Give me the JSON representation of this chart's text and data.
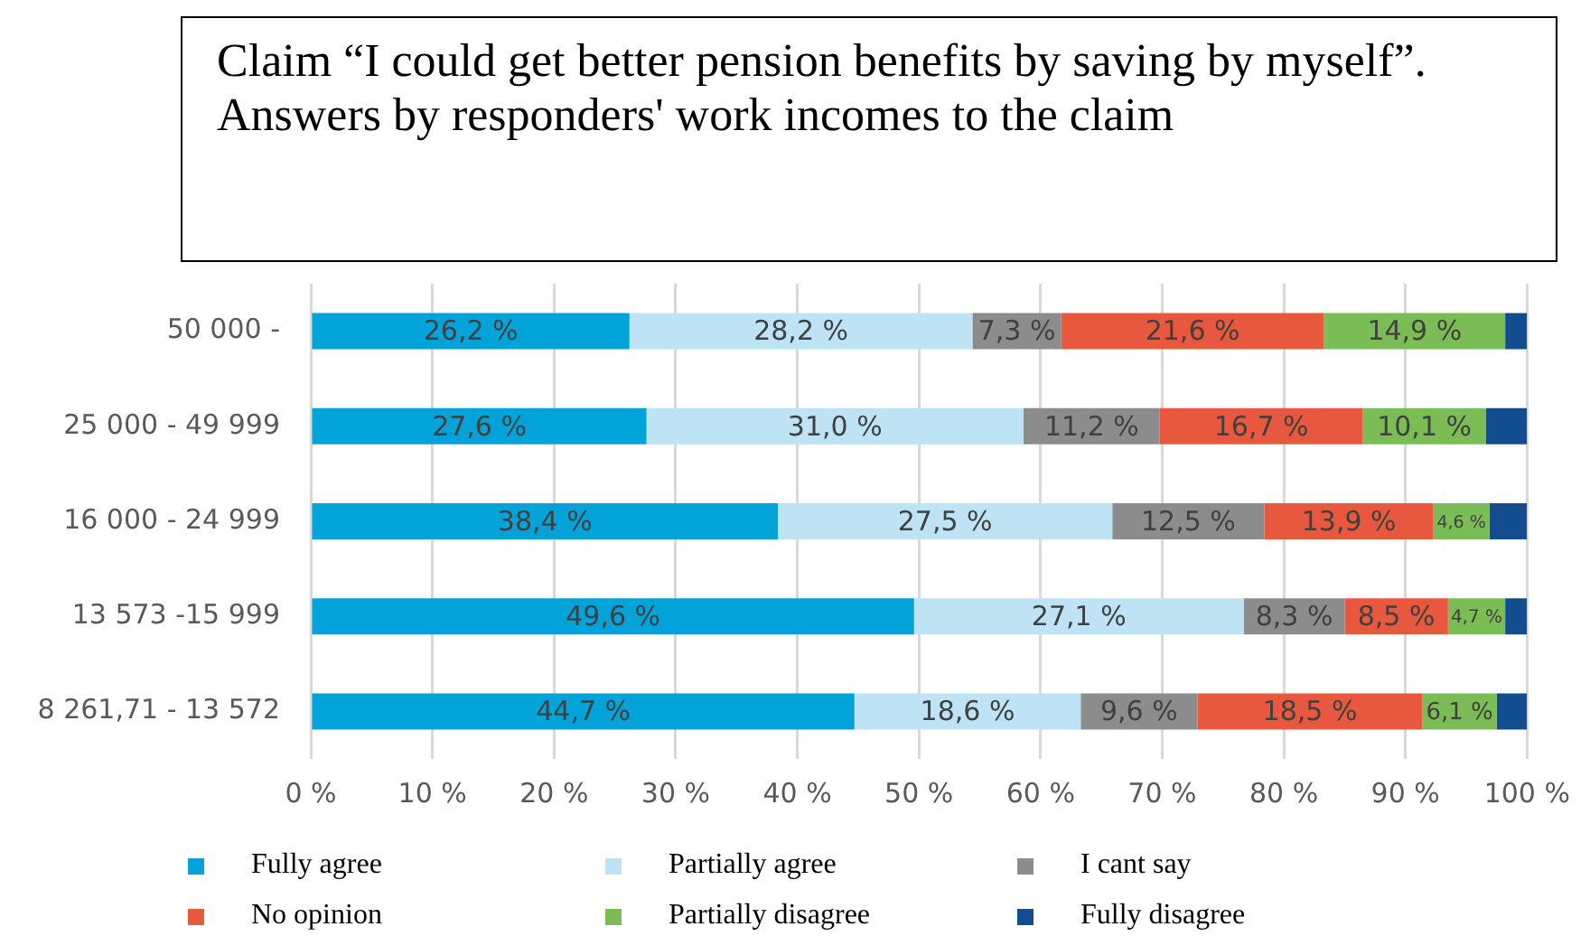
{
  "chart_data": {
    "type": "bar",
    "orientation": "horizontal",
    "stacked": true,
    "title": "Claim “I could get better pension benefits by saving by myself”. Answers by responders' work incomes to the claim",
    "categories": [
      "50 000 -",
      "25 000 - 49 999",
      "16 000 - 24 999",
      "13 573 -15 999",
      "8 261,71 - 13 572"
    ],
    "series": [
      {
        "name": "Fully agree",
        "color": "#02a3d9",
        "values": [
          26.2,
          27.6,
          38.4,
          49.6,
          44.7
        ],
        "value_labels": [
          "26,2 %",
          "27,6 %",
          "38,4 %",
          "49,6 %",
          "44,7 %"
        ]
      },
      {
        "name": "Partially agree",
        "color": "#bde3f4",
        "values": [
          28.2,
          31.0,
          27.5,
          27.1,
          18.6
        ],
        "value_labels": [
          "28,2 %",
          "31,0 %",
          "27,5 %",
          "27,1 %",
          "18,6 %"
        ]
      },
      {
        "name": "I cant say",
        "color": "#8c8c8c",
        "values": [
          7.3,
          11.2,
          12.5,
          8.3,
          9.6
        ],
        "value_labels": [
          "7,3 %",
          "11,2 %",
          "12,5 %",
          "8,3 %",
          "9,6 %"
        ]
      },
      {
        "name": "No opinion",
        "color": "#e8583f",
        "values": [
          21.6,
          16.7,
          13.9,
          8.5,
          18.5
        ],
        "value_labels": [
          "21,6 %",
          "16,7 %",
          "13,9 %",
          "8,5 %",
          "18,5 %"
        ]
      },
      {
        "name": "Partially disagree",
        "color": "#7bbd55",
        "values": [
          14.9,
          10.1,
          4.6,
          4.7,
          6.1
        ],
        "value_labels": [
          "14,9 %",
          "10,1 %",
          "4,6 %",
          "4,7 %",
          "6,1 %"
        ]
      },
      {
        "name": "Fully disagree",
        "color": "#114d8f",
        "values": [
          1.8,
          3.4,
          3.1,
          1.8,
          2.5
        ]
      }
    ],
    "xlim": [
      0,
      100
    ],
    "xticks": [
      {
        "value": 0,
        "label": "0 %"
      },
      {
        "value": 10,
        "label": "10 %"
      },
      {
        "value": 20,
        "label": "20 %"
      },
      {
        "value": 30,
        "label": "30 %"
      },
      {
        "value": 40,
        "label": "40 %"
      },
      {
        "value": 50,
        "label": "50 %"
      },
      {
        "value": 60,
        "label": "60 %"
      },
      {
        "value": 70,
        "label": "70 %"
      },
      {
        "value": 80,
        "label": "80 %"
      },
      {
        "value": 90,
        "label": "90 %"
      },
      {
        "value": 100,
        "label": "100 %"
      }
    ],
    "grid": "x",
    "legend": "bottom"
  }
}
